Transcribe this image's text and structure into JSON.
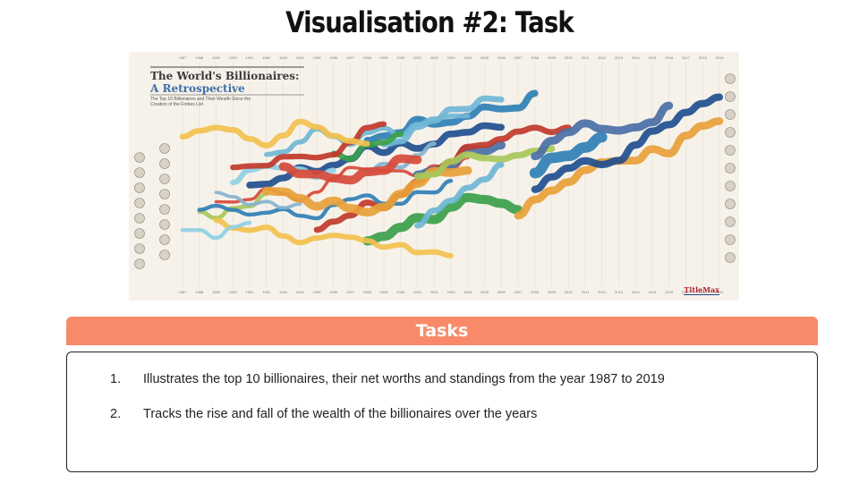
{
  "slide": {
    "title": "Visualisation #2: Task"
  },
  "infographic": {
    "title_line1": "The World's Billionaires:",
    "title_line2": "A Retrospective",
    "subtitle": "The Top 10 Billionaires and Their Wealth Since the Creation of the Forbes List",
    "brand": "TitleMax",
    "years": [
      "1987",
      "1988",
      "1989",
      "1990",
      "1991",
      "1992",
      "1993",
      "1994",
      "1995",
      "1996",
      "1997",
      "1998",
      "1999",
      "2000",
      "2001",
      "2002",
      "2003",
      "2004",
      "2005",
      "2006",
      "2007",
      "2008",
      "2009",
      "2010",
      "2011",
      "2012",
      "2013",
      "2014",
      "2015",
      "2016",
      "2017",
      "2018",
      "2019"
    ],
    "colors": [
      "#2f7fb5",
      "#6fb7d6",
      "#1f4f8f",
      "#8fd0e3",
      "#3aa04a",
      "#e8a13a",
      "#d74a3a",
      "#a8c85a",
      "#86b4cf",
      "#4a6fa5",
      "#c0392b",
      "#f2c14e"
    ]
  },
  "tasks": {
    "header": "Tasks",
    "items": [
      {
        "number": "1.",
        "text": "Illustrates the top 10 billionaires, their net worths and standings from the year 1987 to 2019"
      },
      {
        "number": "2.",
        "text": "Tracks the rise and fall of the wealth of the billionaires over the years"
      }
    ]
  }
}
